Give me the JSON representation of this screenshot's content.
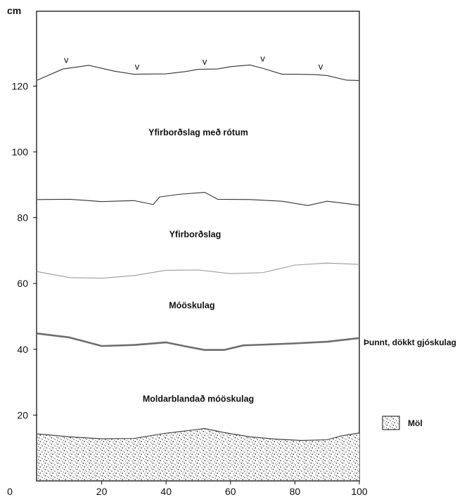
{
  "chart_data": {
    "type": "profile",
    "y_unit": "cm",
    "x_ticks": [
      "20",
      "40",
      "60",
      "80",
      "100"
    ],
    "y_ticks": [
      "0",
      "20",
      "40",
      "60",
      "80",
      "100",
      "120"
    ],
    "xlim": [
      0,
      100
    ],
    "ylim": [
      0,
      145
    ],
    "boundaries": [
      {
        "name": "surface",
        "color": "#333333",
        "x": [
          0,
          8,
          16,
          24,
          30,
          40,
          46,
          50,
          56,
          60,
          66,
          70,
          76,
          80,
          86,
          90,
          96,
          100
        ],
        "y": [
          121.8,
          125.2,
          126.3,
          124.5,
          123.6,
          123.7,
          124.4,
          125.1,
          125.2,
          125.9,
          126.4,
          125.4,
          123.6,
          123.6,
          123.5,
          123.2,
          121.8,
          121.7
        ]
      },
      {
        "name": "boundary-85",
        "color": "#333333",
        "x": [
          0,
          10,
          20,
          30,
          36,
          38,
          44,
          52,
          56,
          66,
          76,
          84,
          90,
          100
        ],
        "y": [
          85.5,
          85.6,
          84.9,
          85.2,
          84.0,
          86.3,
          87.1,
          87.7,
          85.6,
          85.5,
          85.0,
          83.7,
          85.0,
          83.8
        ]
      },
      {
        "name": "boundary-63",
        "color": "#9a9a9a",
        "x": [
          0,
          10,
          20,
          30,
          40,
          50,
          60,
          70,
          80,
          90,
          100
        ],
        "y": [
          63.6,
          61.8,
          61.6,
          62.4,
          64.0,
          64.1,
          63.0,
          63.3,
          65.6,
          66.2,
          65.8
        ]
      },
      {
        "name": "tephra-layer",
        "color": "#6e6e6e",
        "x": [
          0,
          10,
          20,
          30,
          40,
          46,
          52,
          58,
          64,
          70,
          80,
          90,
          100
        ],
        "y": [
          44.8,
          43.6,
          41.0,
          41.3,
          42.1,
          40.9,
          39.8,
          39.8,
          41.2,
          41.4,
          41.8,
          42.3,
          43.4
        ]
      },
      {
        "name": "gravel-top",
        "color": "#333333",
        "x": [
          0,
          10,
          20,
          30,
          40,
          46,
          52,
          58,
          66,
          74,
          82,
          90,
          94,
          100
        ],
        "y": [
          14.3,
          13.4,
          12.8,
          12.9,
          14.5,
          15.2,
          15.9,
          14.7,
          13.4,
          12.7,
          12.3,
          12.5,
          13.6,
          14.6
        ]
      }
    ],
    "layer_labels": [
      {
        "text": "Yfirborðslag með rótum",
        "x": 50,
        "y": 105
      },
      {
        "text": "Yfirborðslag",
        "x": 49,
        "y": 74
      },
      {
        "text": "Móöskulag",
        "x": 48,
        "y": 52.5
      },
      {
        "text": "Moldarblandað móöskulag",
        "x": 50,
        "y": 24
      }
    ],
    "surface_markers": [
      {
        "symbol": "v",
        "x": 9,
        "y": 127
      },
      {
        "symbol": "v",
        "x": 31,
        "y": 125
      },
      {
        "symbol": "v",
        "x": 52,
        "y": 126.5
      },
      {
        "symbol": "v",
        "x": 70,
        "y": 127.5
      },
      {
        "symbol": "v",
        "x": 88,
        "y": 125
      }
    ],
    "side_label": "Þunnt, dökkt gjóskulag",
    "legend_label": "Möl"
  }
}
